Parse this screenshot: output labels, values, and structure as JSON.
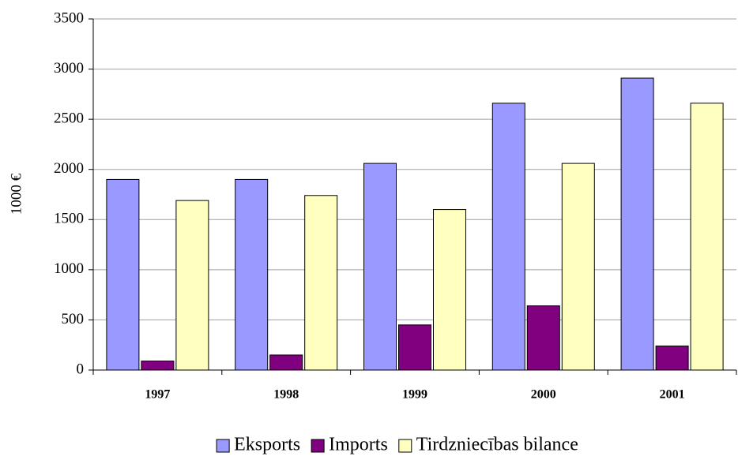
{
  "chart_data": {
    "type": "bar",
    "categories": [
      "1997",
      "1998",
      "1999",
      "2000",
      "2001"
    ],
    "series": [
      {
        "name": "Eksports",
        "color": "#9999ff",
        "values": [
          1900,
          1900,
          2060,
          2660,
          2910
        ]
      },
      {
        "name": "Imports",
        "color": "#800080",
        "values": [
          90,
          150,
          450,
          640,
          240
        ]
      },
      {
        "name": "Tirdzniecības bilance",
        "color": "#ffffc0",
        "values": [
          1690,
          1740,
          1600,
          2060,
          2660
        ]
      }
    ],
    "y_label": "1000 €",
    "ylim": [
      0,
      3500
    ],
    "yticks": [
      0,
      500,
      1000,
      1500,
      2000,
      2500,
      3000,
      3500
    ],
    "grid": true,
    "legend": "bottom"
  }
}
